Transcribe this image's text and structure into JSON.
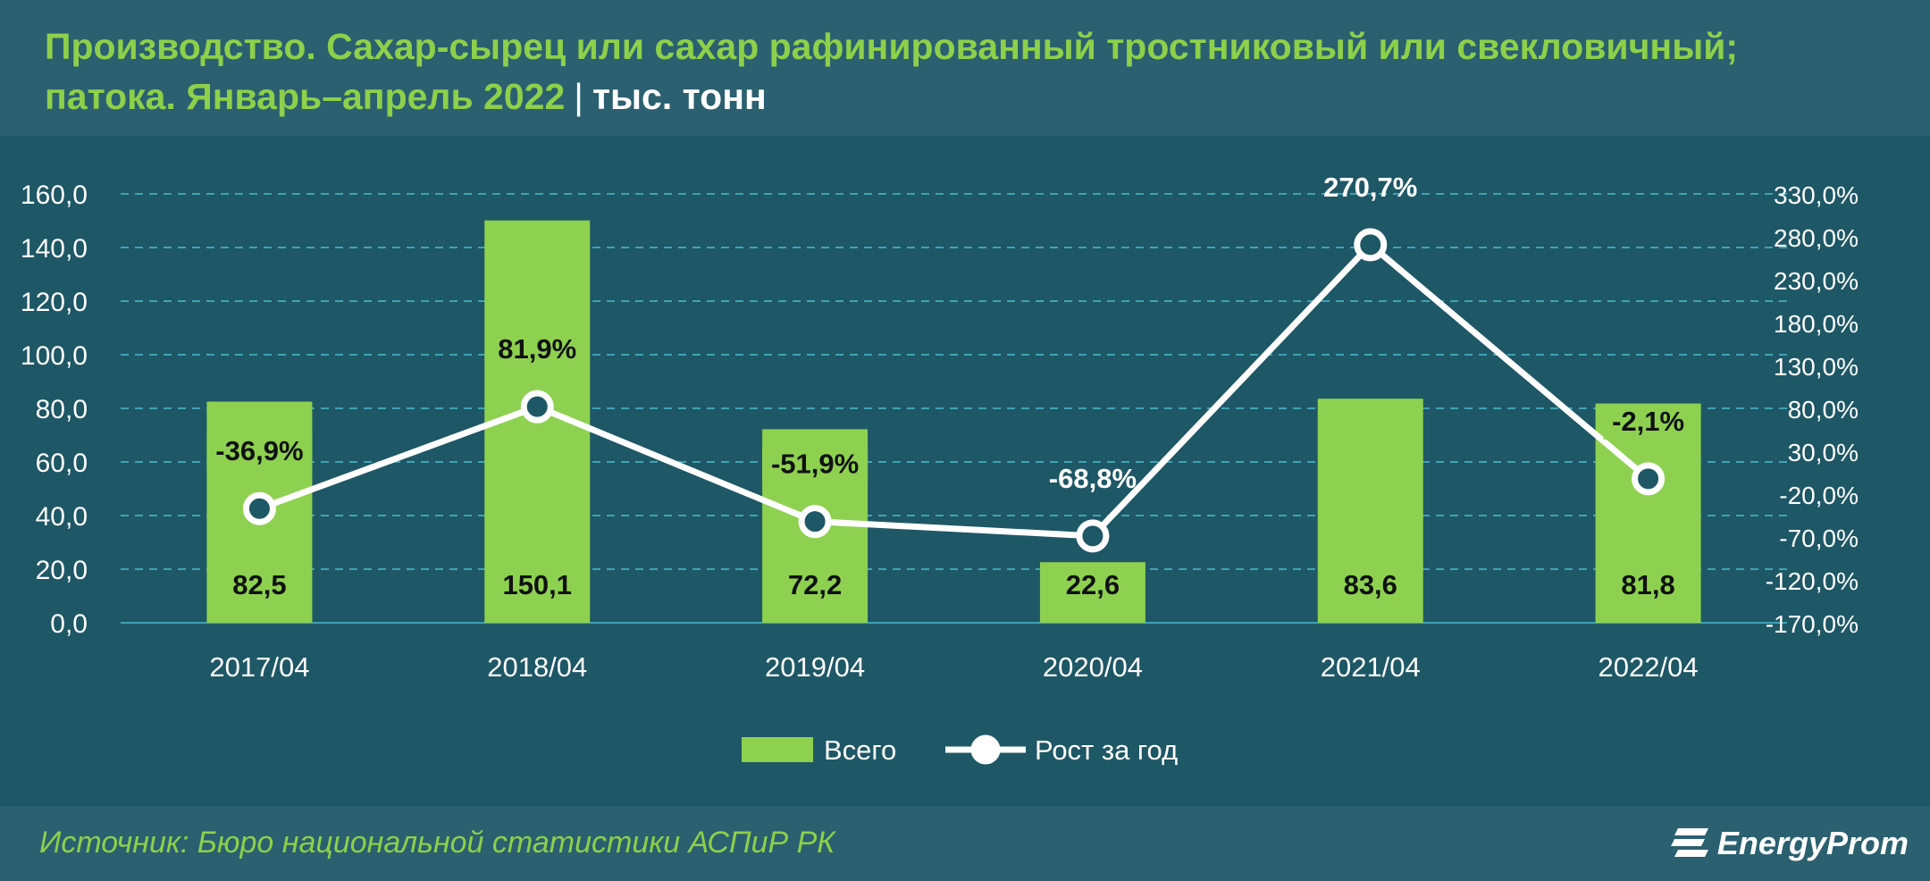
{
  "header": {
    "title_line1": "Производство. Сахар-сырец или сахар рафинированный тростниковый или свекловичный;",
    "title_line2": "патока. Январь–апрель 2022",
    "separator": "|",
    "unit": "тыс. тонн"
  },
  "footer": {
    "source": "Источник: Бюро национальной статистики АСПиР РК",
    "logo_text": "EnergyProm"
  },
  "colors": {
    "bar": "#8ed150",
    "line": "#ffffff",
    "title": "#8dd04a",
    "grid": "#3fa3b6",
    "background": "#1e5766"
  },
  "chart_data": {
    "type": "bar",
    "categories": [
      "2017/04",
      "2018/04",
      "2019/04",
      "2020/04",
      "2021/04",
      "2022/04"
    ],
    "series": [
      {
        "name": "Всего",
        "type": "bar",
        "axis": "left",
        "values": [
          82.5,
          150.1,
          72.2,
          22.6,
          83.6,
          81.8
        ],
        "labels": [
          "82,5",
          "150,1",
          "72,2",
          "22,6",
          "83,6",
          "81,8"
        ]
      },
      {
        "name": "Рост за год",
        "type": "line",
        "axis": "right",
        "values": [
          -36.9,
          81.9,
          -51.9,
          -68.8,
          270.7,
          -2.1
        ],
        "labels": [
          "-36,9%",
          "81,9%",
          "-51,9%",
          "-68,8%",
          "270,7%",
          "-2,1%"
        ]
      }
    ],
    "y_left": {
      "ylim": [
        0,
        160
      ],
      "ticks": [
        0,
        20,
        40,
        60,
        80,
        100,
        120,
        140,
        160
      ],
      "tick_labels": [
        "0,0",
        "20,0",
        "40,0",
        "60,0",
        "80,0",
        "100,0",
        "120,0",
        "140,0",
        "160,0"
      ]
    },
    "y_right": {
      "ylim": [
        -170,
        330
      ],
      "ticks": [
        -170,
        -120,
        -70,
        -20,
        30,
        80,
        130,
        180,
        230,
        280,
        330
      ],
      "tick_labels": [
        "-170,0%",
        "-120,0%",
        "-70,0%",
        "-20,0%",
        "30,0%",
        "80,0%",
        "130,0%",
        "180,0%",
        "230,0%",
        "280,0%",
        "330,0%"
      ]
    },
    "grid": true,
    "legend_position": "bottom-center"
  }
}
